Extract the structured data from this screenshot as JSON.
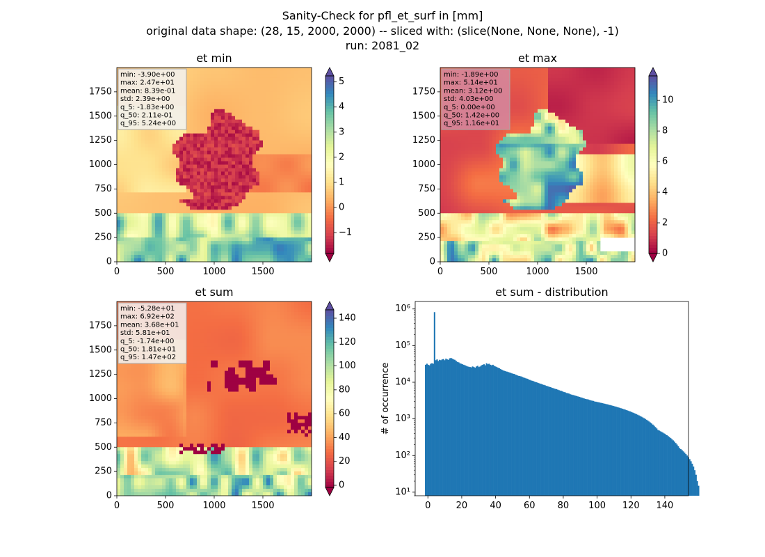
{
  "figure": {
    "title_line1": "Sanity-Check for pfl_et_surf in [mm]",
    "title_line2": "original data shape: (28, 15, 2000, 2000) -- sliced with: (slice(None, None, None), -1)",
    "title_line3": "run: 2081_02"
  },
  "chart_data": [
    {
      "type": "heatmap",
      "title": "et min",
      "x_ticks": [
        0,
        500,
        1000,
        1500
      ],
      "y_ticks": [
        0,
        250,
        500,
        750,
        1000,
        1250,
        1500,
        1750
      ],
      "xlim": [
        0,
        2000
      ],
      "ylim": [
        0,
        2000
      ],
      "colormap": "Spectral",
      "colorbar": {
        "ticks": [
          -1,
          0,
          1,
          2,
          3,
          4,
          5
        ],
        "range": [
          -1.83,
          5.24
        ],
        "extend": "both"
      },
      "stats": [
        "min: -3.90e+00",
        "max: 2.47e+01",
        "mean: 8.39e-01",
        "std: 2.39e+00",
        "q_5: -1.83e+00",
        "q_50: 2.11e-01",
        "q_95: 5.24e+00"
      ],
      "stats_box_color": "#f2f2f2"
    },
    {
      "type": "heatmap",
      "title": "et max",
      "x_ticks": [
        0,
        500,
        1000,
        1500
      ],
      "y_ticks": [
        0,
        250,
        500,
        750,
        1000,
        1250,
        1500,
        1750
      ],
      "xlim": [
        0,
        2000
      ],
      "ylim": [
        0,
        2000
      ],
      "colormap": "Spectral",
      "colorbar": {
        "ticks": [
          0,
          2,
          4,
          6,
          8,
          10
        ],
        "range": [
          0,
          11.6
        ],
        "extend": "both"
      },
      "stats": [
        "min: -1.89e+00",
        "max: 5.14e+01",
        "mean: 3.12e+00",
        "std: 4.03e+00",
        "q_5: 0.00e+00",
        "q_50: 1.42e+00",
        "q_95: 1.16e+01"
      ],
      "stats_box_color": "#d58aa0"
    },
    {
      "type": "heatmap",
      "title": "et sum",
      "x_ticks": [
        0,
        500,
        1000,
        1500
      ],
      "y_ticks": [
        0,
        250,
        500,
        750,
        1000,
        1250,
        1500,
        1750
      ],
      "xlim": [
        0,
        2000
      ],
      "ylim": [
        0,
        2000
      ],
      "colormap": "Spectral",
      "colorbar": {
        "ticks": [
          0,
          20,
          40,
          60,
          80,
          100,
          120,
          140
        ],
        "range": [
          -1.74,
          147
        ],
        "extend": "both"
      },
      "stats": [
        "min: -5.28e+01",
        "max: 6.92e+02",
        "mean: 3.68e+01",
        "std: 5.81e+01",
        "q_5: -1.74e+00",
        "q_50: 1.81e+01",
        "q_95: 1.47e+02"
      ],
      "stats_box_color": "#f2f2f2"
    },
    {
      "type": "bar",
      "title": "et sum - distribution",
      "ylabel": "# of occurrence",
      "xlabel": "",
      "yscale": "log",
      "xlim": [
        -7.5,
        154
      ],
      "ylim": [
        8,
        1600000
      ],
      "x_ticks": [
        0,
        20,
        40,
        60,
        80,
        100,
        120,
        140
      ],
      "y_ticks": [
        {
          "value": 10,
          "label": "10¹"
        },
        {
          "value": 100,
          "label": "10²"
        },
        {
          "value": 1000,
          "label": "10³"
        },
        {
          "value": 10000,
          "label": "10⁴"
        },
        {
          "value": 100000,
          "label": "10⁵"
        },
        {
          "value": 1000000,
          "label": "10⁶"
        }
      ],
      "bar_color": "#1f77b4",
      "bins": {
        "start": -1.74,
        "width": 0.75
      },
      "counts": [
        30000,
        32000,
        30000,
        29000,
        32000,
        33000,
        32000,
        820000,
        40000,
        42000,
        38000,
        41000,
        40000,
        42000,
        43000,
        40000,
        44000,
        42000,
        41000,
        45000,
        46000,
        44000,
        42000,
        41000,
        38000,
        36000,
        35000,
        33000,
        32000,
        31000,
        30000,
        29000,
        28000,
        27000,
        26500,
        26000,
        25500,
        27000,
        26000,
        25000,
        27000,
        28000,
        26000,
        27000,
        29000,
        30000,
        31000,
        29000,
        33000,
        31000,
        32000,
        30000,
        29000,
        30000,
        28000,
        27000,
        26000,
        25000,
        24000,
        23000,
        22000,
        21000,
        20500,
        20000,
        19500,
        19000,
        18500,
        18000,
        17500,
        17000,
        16800,
        16000,
        15500,
        15000,
        14800,
        14500,
        14000,
        13500,
        13200,
        12800,
        12500,
        12000,
        11600,
        11200,
        11000,
        10700,
        10300,
        10000,
        9800,
        9500,
        9200,
        9000,
        8700,
        8500,
        8300,
        8000,
        7800,
        7600,
        7400,
        7200,
        7000,
        6800,
        6600,
        6500,
        6300,
        6100,
        5900,
        5800,
        5600,
        5400,
        5300,
        5100,
        5000,
        4900,
        4700,
        4600,
        4500,
        4400,
        4300,
        4200,
        4100,
        4000,
        3900,
        3800,
        3700,
        3600,
        3500,
        3450,
        3400,
        3300,
        3200,
        3150,
        3100,
        3000,
        2950,
        2900,
        2850,
        2800,
        2750,
        2700,
        2650,
        2600,
        2550,
        2500,
        2450,
        2400,
        2350,
        2300,
        2250,
        2200,
        2150,
        2100,
        2050,
        2000,
        1950,
        1900,
        1850,
        1800,
        1750,
        1700,
        1650,
        1600,
        1550,
        1500,
        1450,
        1400,
        1350,
        1300,
        1250,
        1200,
        1150,
        1100,
        1050,
        1000,
        950,
        900,
        850,
        800,
        750,
        700,
        650,
        600,
        550,
        500,
        480,
        460,
        440,
        420,
        400,
        380,
        360,
        340,
        320,
        300,
        280,
        260,
        240,
        220,
        200,
        180,
        160,
        150,
        140,
        130,
        120,
        110,
        100,
        90,
        80,
        70,
        60,
        50,
        40,
        30,
        20,
        15
      ]
    }
  ]
}
